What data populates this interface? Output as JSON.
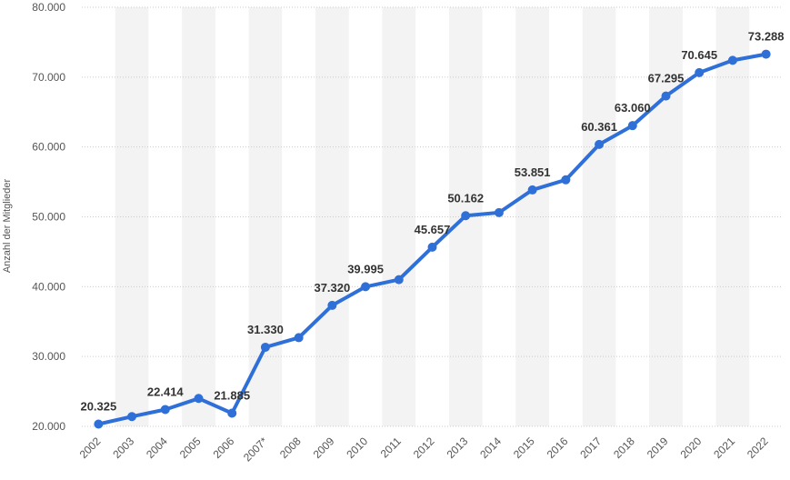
{
  "chart_data": {
    "type": "line",
    "ylabel": "Anzahl der Mitglieder",
    "ylim": [
      20000,
      80000
    ],
    "yticks": [
      20000,
      30000,
      40000,
      50000,
      60000,
      70000,
      80000
    ],
    "ytick_labels": [
      "20.000",
      "30.000",
      "40.000",
      "50.000",
      "60.000",
      "70.000",
      "80.000"
    ],
    "categories": [
      "2002",
      "2003",
      "2004",
      "2005",
      "2006",
      "2007*",
      "2008",
      "2009",
      "2010",
      "2011",
      "2012",
      "2013",
      "2014",
      "2015",
      "2016",
      "2017",
      "2018",
      "2019",
      "2020",
      "2021",
      "2022"
    ],
    "values": [
      20325,
      21400,
      22414,
      24000,
      21885,
      31330,
      32700,
      37320,
      39995,
      41000,
      45657,
      50162,
      50600,
      53851,
      55300,
      60361,
      63060,
      67295,
      70645,
      72400,
      73288
    ],
    "data_labels": [
      "20.325",
      "",
      "22.414",
      "",
      "21.885",
      "31.330",
      "",
      "37.320",
      "39.995",
      "",
      "45.657",
      "50.162",
      "",
      "53.851",
      "",
      "60.361",
      "63.060",
      "67.295",
      "70.645",
      "",
      "73.288"
    ],
    "grid": true,
    "colors": {
      "line": "#2f6fd8",
      "band": "#f3f3f3",
      "grid": "#cccccc"
    }
  }
}
